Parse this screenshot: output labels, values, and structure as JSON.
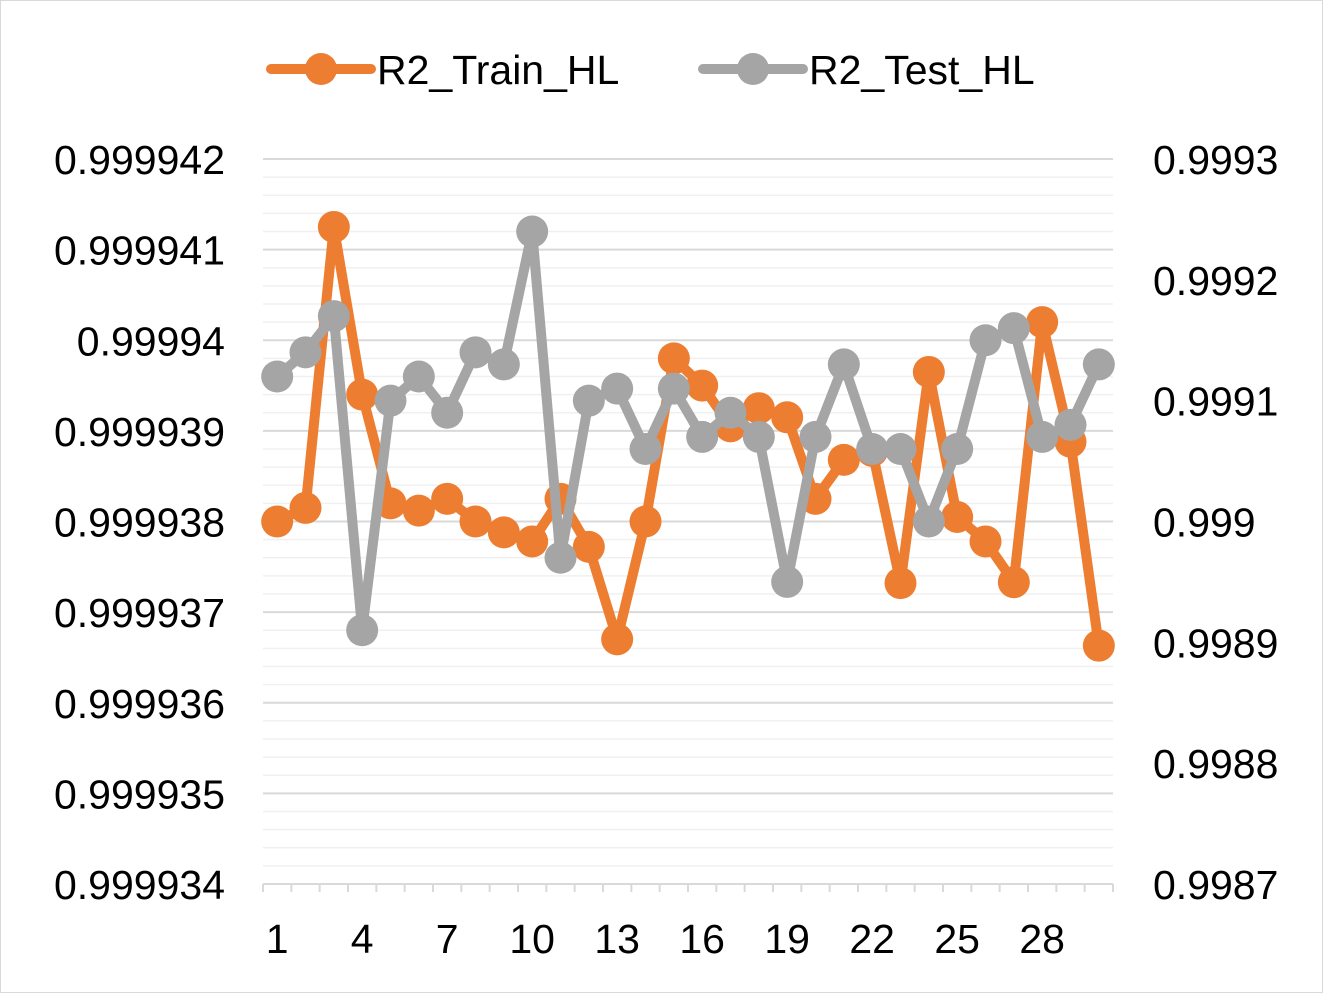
{
  "chart_data": {
    "type": "line",
    "title": "",
    "xlabel": "",
    "x": [
      1,
      2,
      3,
      4,
      5,
      6,
      7,
      8,
      9,
      10,
      11,
      12,
      13,
      14,
      15,
      16,
      17,
      18,
      19,
      20,
      21,
      22,
      23,
      24,
      25,
      26,
      27,
      28,
      29,
      30
    ],
    "x_tick_labels": [
      "1",
      "4",
      "7",
      "10",
      "13",
      "16",
      "19",
      "22",
      "25",
      "28"
    ],
    "y_left_tick_labels": [
      "0.999942",
      "0.999941",
      "0.99994",
      "0.999939",
      "0.999938",
      "0.999937",
      "0.999936",
      "0.999935",
      "0.999934"
    ],
    "y_right_tick_labels": [
      "0.9993",
      "0.9992",
      "0.9991",
      "0.999",
      "0.9989",
      "0.9988",
      "0.9987"
    ],
    "y_left_range": [
      0.999934,
      0.999942
    ],
    "y_right_range": [
      0.9987,
      0.9993
    ],
    "grid": true,
    "legend_position": "top",
    "series": [
      {
        "name": "R2_Train_HL",
        "axis": "left",
        "color": "#ed7d31",
        "values": [
          0.999938,
          0.99993815,
          0.99994125,
          0.9999394,
          0.9999382,
          0.99993812,
          0.99993825,
          0.999938,
          0.99993788,
          0.99993778,
          0.99993825,
          0.99993772,
          0.9999367,
          0.999938,
          0.9999398,
          0.9999395,
          0.99993905,
          0.99993925,
          0.99993915,
          0.99993825,
          0.99993868,
          0.99993878,
          0.99993732,
          0.99993965,
          0.99993805,
          0.99993778,
          0.99993733,
          0.9999402,
          0.99993888,
          0.99993663
        ]
      },
      {
        "name": "R2_Test_HL",
        "axis": "right",
        "color": "#a5a5a5",
        "values": [
          0.99912,
          0.99914,
          0.99917,
          0.99891,
          0.9991,
          0.99912,
          0.99909,
          0.99914,
          0.99913,
          0.99924,
          0.99897,
          0.9991,
          0.99911,
          0.99906,
          0.99911,
          0.99907,
          0.99909,
          0.99907,
          0.99895,
          0.99907,
          0.99913,
          0.99906,
          0.99906,
          0.999,
          0.99906,
          0.99915,
          0.99916,
          0.99907,
          0.99908,
          0.99913
        ]
      }
    ]
  }
}
